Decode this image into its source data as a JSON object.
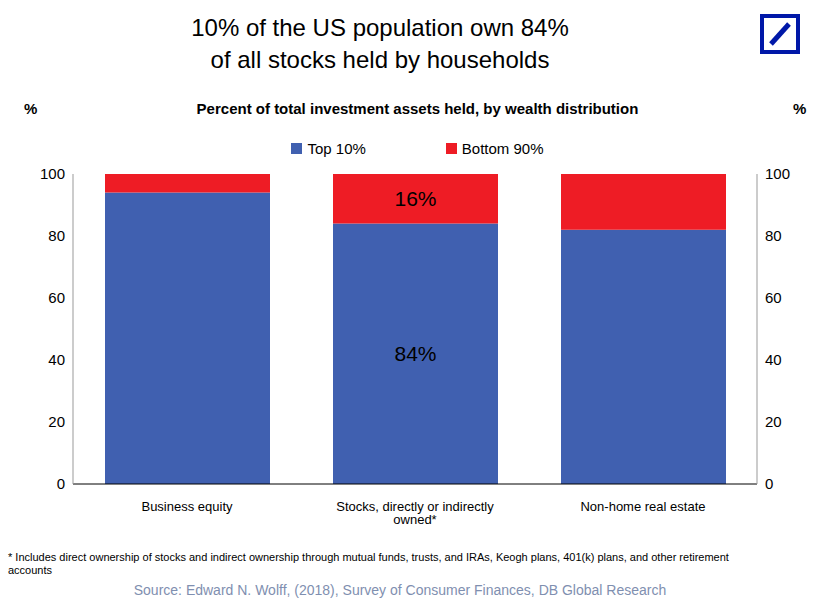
{
  "chart_data": {
    "type": "bar",
    "title": "10% of the US population own 84%\nof all stocks held by households",
    "subtitle": "Percent of total investment assets held, by wealth distribution",
    "ylabel": "%",
    "y2label": "%",
    "categories": [
      "Business equity",
      "Stocks, directly or indirectly owned*",
      "Non-home real estate"
    ],
    "series": [
      {
        "name": "Top 10%",
        "color": "#4060b0",
        "values": [
          94,
          84,
          82
        ],
        "value_labels": [
          null,
          "84%",
          null
        ]
      },
      {
        "name": "Bottom 90%",
        "color": "#ee1c25",
        "values": [
          6,
          16,
          18
        ],
        "value_labels": [
          null,
          "16%",
          null
        ]
      }
    ],
    "stacked": true,
    "data_labels": true,
    "grid": false,
    "legend": "top",
    "ylim": [
      0,
      100
    ],
    "yticks": [
      0,
      20,
      40,
      60,
      80,
      100
    ],
    "y2lim": [
      0,
      100
    ],
    "y2ticks": [
      0,
      20,
      40,
      60,
      80,
      100
    ],
    "note": "* Includes direct ownership of stocks and indirect ownership through mutual funds, trusts, and IRAs, Keogh plans, 401(k) plans, and other retirement accounts",
    "source": "Source: Edward N. Wolff, (2018), Survey of Consumer Finances, DB Global Research"
  }
}
